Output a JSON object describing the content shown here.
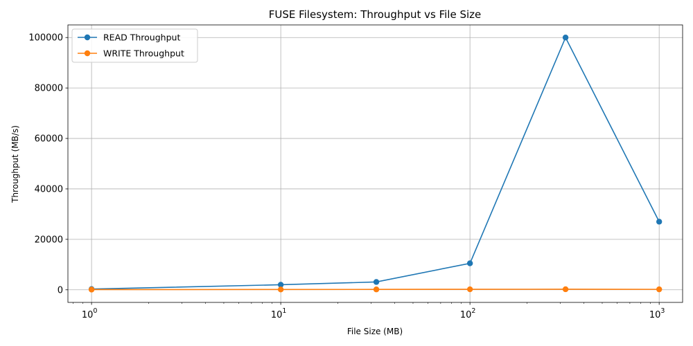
{
  "chart_data": {
    "type": "line",
    "title": "FUSE Filesystem: Throughput vs File Size",
    "xlabel": "File Size (MB)",
    "ylabel": "Throughput (MB/s)",
    "xscale": "log",
    "xlim": [
      0.75,
      1330
    ],
    "ylim": [
      -5000,
      105000
    ],
    "x": [
      1,
      10,
      32,
      100,
      320,
      1000
    ],
    "x_ticks": [
      {
        "value": 1,
        "base": "10",
        "exp": "0"
      },
      {
        "value": 10,
        "base": "10",
        "exp": "1"
      },
      {
        "value": 100,
        "base": "10",
        "exp": "2"
      },
      {
        "value": 1000,
        "base": "10",
        "exp": "3"
      }
    ],
    "y_ticks": [
      {
        "value": 0,
        "label": "0"
      },
      {
        "value": 20000,
        "label": "20000"
      },
      {
        "value": 40000,
        "label": "40000"
      },
      {
        "value": 60000,
        "label": "60000"
      },
      {
        "value": 80000,
        "label": "80000"
      },
      {
        "value": 100000,
        "label": "100000"
      }
    ],
    "grid": true,
    "legend_position": "top-left",
    "series": [
      {
        "name": "READ Throughput",
        "color": "#1f77b4",
        "values": [
          300,
          2000,
          3100,
          10500,
          100000,
          27000
        ]
      },
      {
        "name": "WRITE Throughput",
        "color": "#ff7f0e",
        "values": [
          80,
          120,
          150,
          200,
          220,
          180
        ]
      }
    ]
  }
}
